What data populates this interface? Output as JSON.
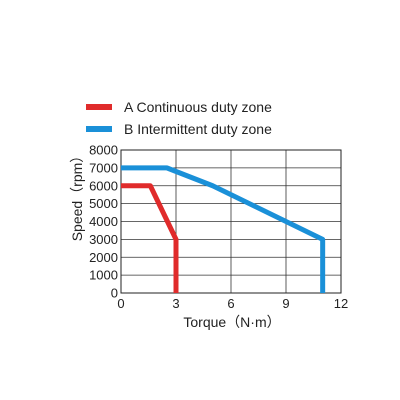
{
  "chart_data": {
    "type": "line",
    "xlabel": "Torque（N·m）",
    "ylabel": "Speed（rpm）",
    "xlim": [
      0,
      12
    ],
    "ylim": [
      0,
      8000
    ],
    "x_ticks": [
      "0",
      "3",
      "6",
      "9",
      "12"
    ],
    "y_ticks": [
      "0",
      "1000",
      "2000",
      "3000",
      "4000",
      "5000",
      "6000",
      "7000",
      "8000"
    ],
    "grid": true,
    "legend_position": "top",
    "series": [
      {
        "name": "A Continuous duty zone",
        "color": "#e02b2b",
        "points": [
          [
            0,
            6000
          ],
          [
            1.6,
            6000
          ],
          [
            3.0,
            3000
          ],
          [
            3.0,
            0
          ]
        ]
      },
      {
        "name": "B Intermittent duty zone",
        "color": "#1a90d8",
        "points": [
          [
            0,
            7000
          ],
          [
            2.5,
            7000
          ],
          [
            5.0,
            6000
          ],
          [
            11.0,
            3000
          ],
          [
            11.0,
            0
          ]
        ]
      }
    ]
  }
}
